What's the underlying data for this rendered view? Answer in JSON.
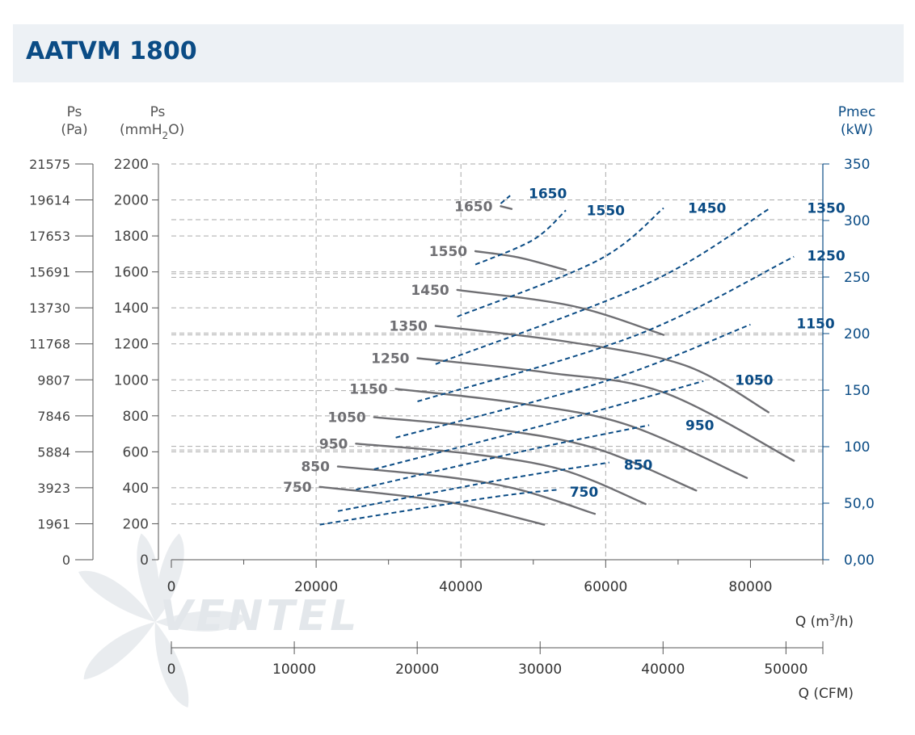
{
  "title": "AATVM 1800",
  "logo_text": "VENTEL",
  "colors": {
    "pressure_curve": "#6f6f73",
    "power_curve": "#0b4c85",
    "power_axis": "#0b4c85",
    "axis": "#555555",
    "grid": "#aaaaaa",
    "title_bg": "#edf1f5",
    "title_text": "#0b4c85",
    "logo": "#e9ecef"
  },
  "chart_data": {
    "type": "line",
    "axes": {
      "ps_pa": {
        "label_line1": "Ps",
        "label_line2": "(Pa)",
        "ticks": [
          "21575",
          "19614",
          "17653",
          "15691",
          "13730",
          "11768",
          "9807",
          "7846",
          "5884",
          "3923",
          "1961",
          "0"
        ]
      },
      "ps_mmh2o": {
        "label_line1": "Ps",
        "label_line2_main": "(mmH",
        "label_line2_sub": "2",
        "label_line2_end": "O)",
        "ylim": [
          0,
          2200
        ],
        "ticks": [
          0,
          200,
          400,
          600,
          800,
          1000,
          1200,
          1400,
          1600,
          1800,
          2000,
          2200
        ]
      },
      "pmec": {
        "label_line1": "Pmec",
        "label_line2": "(kW)",
        "ylim": [
          0,
          350
        ],
        "ticks": [
          "350",
          "300",
          "250",
          "200",
          "150",
          "100",
          "50,0",
          "0,00"
        ]
      },
      "q_m3h": {
        "label_main": "Q (m",
        "label_sup": "3",
        "label_end": "/h)",
        "xlim": [
          0,
          90000
        ],
        "ticks": [
          0,
          20000,
          40000,
          60000,
          80000
        ],
        "grid": [
          20000,
          40000,
          60000
        ]
      },
      "q_cfm": {
        "label": "Q (CFM)",
        "xlim": [
          0,
          53000
        ],
        "ticks": [
          0,
          10000,
          20000,
          30000,
          40000,
          50000
        ]
      }
    },
    "extra_grid_ps": [
      1890,
      1590,
      1570,
      1260,
      1250,
      940,
      630,
      610,
      310
    ],
    "pressure_curves": [
      {
        "name": "750",
        "label_x": 32500,
        "label_y": 405,
        "points": [
          [
            20500,
            405
          ],
          [
            33000,
            350
          ],
          [
            41000,
            300
          ],
          [
            51500,
            195
          ]
        ]
      },
      {
        "name": "850",
        "label_x": 35000,
        "label_y": 520,
        "points": [
          [
            23000,
            518
          ],
          [
            38000,
            460
          ],
          [
            48000,
            390
          ],
          [
            58500,
            255
          ]
        ]
      },
      {
        "name": "950",
        "label_x": 38000,
        "label_y": 650,
        "points": [
          [
            25500,
            645
          ],
          [
            41000,
            590
          ],
          [
            54000,
            500
          ],
          [
            65500,
            310
          ]
        ]
      },
      {
        "name": "1050",
        "label_x": 40500,
        "label_y": 795,
        "points": [
          [
            28000,
            792
          ],
          [
            44000,
            730
          ],
          [
            58500,
            620
          ],
          [
            72500,
            385
          ]
        ]
      },
      {
        "name": "1150",
        "label_x": 43000,
        "label_y": 950,
        "points": [
          [
            31000,
            950
          ],
          [
            48000,
            870
          ],
          [
            63000,
            750
          ],
          [
            79500,
            455
          ]
        ]
      },
      {
        "name": "1250",
        "label_x": 45500,
        "label_y": 1120,
        "points": [
          [
            34000,
            1120
          ],
          [
            52000,
            1040
          ],
          [
            68000,
            930
          ],
          [
            86000,
            550
          ]
        ]
      },
      {
        "name": "1350",
        "label_x": 48000,
        "label_y": 1300,
        "points": [
          [
            36500,
            1300
          ],
          [
            55000,
            1210
          ],
          [
            71000,
            1080
          ],
          [
            82500,
            820
          ]
        ]
      },
      {
        "name": "1450",
        "label_x": 50500,
        "label_y": 1500,
        "points": [
          [
            39500,
            1500
          ],
          [
            55500,
            1410
          ],
          [
            68000,
            1250
          ]
        ]
      },
      {
        "name": "1550",
        "label_x": 53000,
        "label_y": 1715,
        "points": [
          [
            42000,
            1715
          ],
          [
            48000,
            1680
          ],
          [
            54500,
            1610
          ]
        ]
      },
      {
        "name": "1650",
        "label_x": 55500,
        "label_y": 1965,
        "points": [
          [
            45500,
            1965
          ],
          [
            47000,
            1950
          ]
        ]
      }
    ],
    "power_curves": [
      {
        "name": "750",
        "label_x": 57000,
        "label_y": 60,
        "points": [
          [
            20500,
            31
          ],
          [
            44000,
            55
          ],
          [
            53500,
            62
          ]
        ]
      },
      {
        "name": "850",
        "label_x": 64500,
        "label_y": 84,
        "points": [
          [
            23000,
            43
          ],
          [
            45000,
            70
          ],
          [
            60500,
            86
          ]
        ]
      },
      {
        "name": "950",
        "label_x": 73000,
        "label_y": 119,
        "points": [
          [
            25500,
            62
          ],
          [
            50000,
            98
          ],
          [
            66000,
            119
          ]
        ]
      },
      {
        "name": "1050",
        "label_x": 80500,
        "label_y": 159,
        "points": [
          [
            28000,
            80
          ],
          [
            55000,
            125
          ],
          [
            73500,
            158
          ]
        ]
      },
      {
        "name": "1150",
        "label_x": 89000,
        "label_y": 209,
        "points": [
          [
            31000,
            108
          ],
          [
            60000,
            158
          ],
          [
            80000,
            208
          ]
        ]
      },
      {
        "name": "1250",
        "label_x": 96500,
        "label_y": 269,
        "points": [
          [
            34000,
            140
          ],
          [
            64000,
            198
          ],
          [
            86000,
            268
          ]
        ]
      },
      {
        "name": "1350",
        "label_x": 95000,
        "label_y": 311,
        "points": [
          [
            36500,
            173
          ],
          [
            66000,
            245
          ],
          [
            82500,
            310
          ]
        ]
      },
      {
        "name": "1450",
        "label_x": 74000,
        "label_y": 311,
        "points": [
          [
            39500,
            215
          ],
          [
            59000,
            265
          ],
          [
            68000,
            311
          ]
        ]
      },
      {
        "name": "1550",
        "label_x": 60000,
        "label_y": 309,
        "points": [
          [
            42000,
            261
          ],
          [
            50000,
            283
          ],
          [
            54500,
            309
          ]
        ]
      },
      {
        "name": "1650",
        "label_x": 52000,
        "label_y": 324,
        "points": [
          [
            45500,
            315
          ],
          [
            46800,
            322
          ]
        ]
      }
    ]
  }
}
